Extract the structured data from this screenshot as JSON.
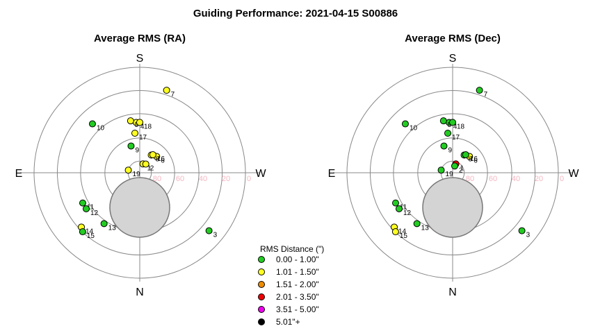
{
  "chart_data": {
    "type": "scatter",
    "title": "Guiding Performance: 2021-04-15 S00886",
    "projection": "polar",
    "directions": {
      "top": "S",
      "bottom": "N",
      "left": "E",
      "right": "W"
    },
    "altitude_ticks": [
      "80",
      "60",
      "40",
      "20",
      "0"
    ],
    "obstruction": "gray disk north of zenith",
    "legend": {
      "title": "RMS Distance (\")",
      "entries": [
        {
          "label": "0.00 - 1.00\"",
          "color": "#22cc22"
        },
        {
          "label": "1.01 - 1.50\"",
          "color": "#ffff22"
        },
        {
          "label": "1.51 - 2.00\"",
          "color": "#ee8c00"
        },
        {
          "label": "2.01 - 3.50\"",
          "color": "#ee0000"
        },
        {
          "label": "3.51 - 5.00\"",
          "color": "#ee00ee"
        },
        {
          "label": "5.01\"+",
          "color": "#000000"
        }
      ]
    },
    "panels": [
      {
        "title": "Average RMS (RA)",
        "points": [
          {
            "id": "1",
            "altitude": 82,
            "azimuth": 200,
            "category": 1
          },
          {
            "id": "2",
            "altitude": 81,
            "azimuth": 215,
            "category": 1
          },
          {
            "id": "3",
            "altitude": 13,
            "azimuth": 310,
            "category": 0
          },
          {
            "id": "4",
            "altitude": 47,
            "azimuth": 176,
            "category": 1
          },
          {
            "id": "5",
            "altitude": 45,
            "azimuth": 170,
            "category": 1
          },
          {
            "id": "6",
            "altitude": 70,
            "azimuth": 226,
            "category": 1
          },
          {
            "id": "7",
            "altitude": 16,
            "azimuth": 198,
            "category": 1
          },
          {
            "id": "8",
            "altitude": 72,
            "azimuth": 213,
            "category": 1
          },
          {
            "id": "9",
            "altitude": 66,
            "azimuth": 162,
            "category": 0
          },
          {
            "id": "10",
            "altitude": 32,
            "azimuth": 136,
            "category": 0
          },
          {
            "id": "11",
            "altitude": 35,
            "azimuth": 62,
            "category": 0
          },
          {
            "id": "12",
            "altitude": 35,
            "azimuth": 56,
            "category": 0
          },
          {
            "id": "13",
            "altitude": 37,
            "azimuth": 35,
            "category": 0
          },
          {
            "id": "14",
            "altitude": 22,
            "azimuth": 47,
            "category": 1
          },
          {
            "id": "15",
            "altitude": 20,
            "azimuth": 44,
            "category": 0
          },
          {
            "id": "16",
            "altitude": 71,
            "azimuth": 216,
            "category": 1
          },
          {
            "id": "17",
            "altitude": 56,
            "azimuth": 173,
            "category": 1
          },
          {
            "id": "18",
            "altitude": 47,
            "azimuth": 180,
            "category": 1
          },
          {
            "id": "19",
            "altitude": 80,
            "azimuth": 103,
            "category": 1
          }
        ]
      },
      {
        "title": "Average RMS (Dec)",
        "points": [
          {
            "id": "1",
            "altitude": 82,
            "azimuth": 200,
            "category": 3
          },
          {
            "id": "2",
            "altitude": 84,
            "azimuth": 197,
            "category": 0
          },
          {
            "id": "3",
            "altitude": 13,
            "azimuth": 310,
            "category": 0
          },
          {
            "id": "4",
            "altitude": 47,
            "azimuth": 176,
            "category": 0
          },
          {
            "id": "5",
            "altitude": 45,
            "azimuth": 170,
            "category": 0
          },
          {
            "id": "6",
            "altitude": 70,
            "azimuth": 226,
            "category": 1
          },
          {
            "id": "7",
            "altitude": 16,
            "azimuth": 198,
            "category": 0
          },
          {
            "id": "8",
            "altitude": 72,
            "azimuth": 213,
            "category": 0
          },
          {
            "id": "9",
            "altitude": 66,
            "azimuth": 162,
            "category": 0
          },
          {
            "id": "10",
            "altitude": 32,
            "azimuth": 136,
            "category": 0
          },
          {
            "id": "11",
            "altitude": 35,
            "azimuth": 62,
            "category": 0
          },
          {
            "id": "12",
            "altitude": 35,
            "azimuth": 56,
            "category": 0
          },
          {
            "id": "13",
            "altitude": 37,
            "azimuth": 35,
            "category": 0
          },
          {
            "id": "14",
            "altitude": 22,
            "azimuth": 47,
            "category": 1
          },
          {
            "id": "15",
            "altitude": 20,
            "azimuth": 44,
            "category": 1
          },
          {
            "id": "16",
            "altitude": 71,
            "azimuth": 216,
            "category": 0
          },
          {
            "id": "17",
            "altitude": 56,
            "azimuth": 173,
            "category": 0
          },
          {
            "id": "18",
            "altitude": 47,
            "azimuth": 180,
            "category": 0
          },
          {
            "id": "19",
            "altitude": 80,
            "azimuth": 103,
            "category": 0
          }
        ]
      }
    ]
  }
}
